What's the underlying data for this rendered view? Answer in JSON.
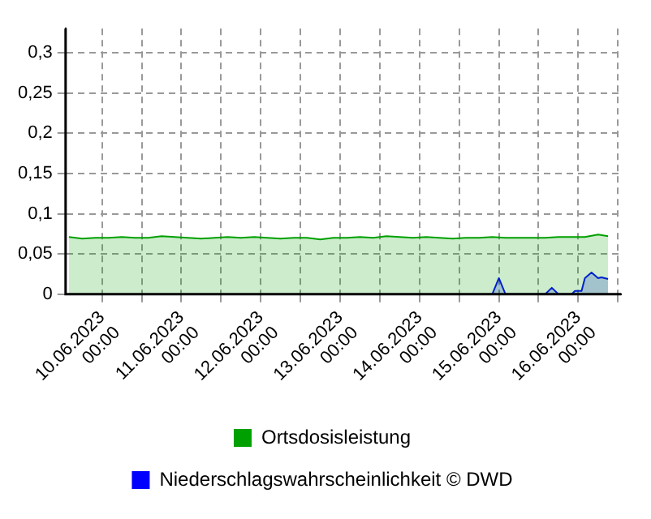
{
  "chart_data": {
    "type": "area",
    "xlim": [
      "2023-06-09T13:00",
      "2023-06-16T13:00"
    ],
    "xticks": [
      {
        "value": "2023-06-10T00:00",
        "label": "10.06.2023 00:00"
      },
      {
        "value": "2023-06-10T12:00",
        "label": null
      },
      {
        "value": "2023-06-11T00:00",
        "label": "11.06.2023 00:00"
      },
      {
        "value": "2023-06-11T12:00",
        "label": null
      },
      {
        "value": "2023-06-12T00:00",
        "label": "12.06.2023 00:00"
      },
      {
        "value": "2023-06-12T12:00",
        "label": null
      },
      {
        "value": "2023-06-13T00:00",
        "label": "13.06.2023 00:00"
      },
      {
        "value": "2023-06-13T12:00",
        "label": null
      },
      {
        "value": "2023-06-14T00:00",
        "label": "14.06.2023 00:00"
      },
      {
        "value": "2023-06-14T12:00",
        "label": null
      },
      {
        "value": "2023-06-15T00:00",
        "label": "15.06.2023 00:00"
      },
      {
        "value": "2023-06-15T12:00",
        "label": null
      },
      {
        "value": "2023-06-16T00:00",
        "label": "16.06.2023 00:00"
      },
      {
        "value": "2023-06-16T12:00",
        "label": null
      }
    ],
    "ylim": [
      0,
      0.33
    ],
    "yticks": [
      0,
      {
        "value": 0.05,
        "label": "0,05"
      },
      {
        "value": 0.1,
        "label": "0,1"
      },
      {
        "value": 0.15,
        "label": "0,15"
      },
      {
        "value": 0.2,
        "label": "0,2"
      },
      {
        "value": 0.25,
        "label": "0,25"
      },
      {
        "value": 0.3,
        "label": "0,3"
      }
    ],
    "grid": true,
    "legend": "bottom",
    "series": [
      {
        "name": "Ortsdosisleistung",
        "color": "#00a000",
        "x": [
          "2023-06-09T14:00",
          "2023-06-09T18:00",
          "2023-06-09T22:00",
          "2023-06-10T02:00",
          "2023-06-10T06:00",
          "2023-06-10T10:00",
          "2023-06-10T14:00",
          "2023-06-10T18:00",
          "2023-06-10T22:00",
          "2023-06-11T02:00",
          "2023-06-11T06:00",
          "2023-06-11T10:00",
          "2023-06-11T14:00",
          "2023-06-11T18:00",
          "2023-06-11T22:00",
          "2023-06-12T02:00",
          "2023-06-12T06:00",
          "2023-06-12T10:00",
          "2023-06-12T14:00",
          "2023-06-12T18:00",
          "2023-06-12T22:00",
          "2023-06-13T02:00",
          "2023-06-13T06:00",
          "2023-06-13T10:00",
          "2023-06-13T14:00",
          "2023-06-13T18:00",
          "2023-06-13T22:00",
          "2023-06-14T02:00",
          "2023-06-14T06:00",
          "2023-06-14T10:00",
          "2023-06-14T14:00",
          "2023-06-14T18:00",
          "2023-06-14T22:00",
          "2023-06-15T02:00",
          "2023-06-15T06:00",
          "2023-06-15T10:00",
          "2023-06-15T14:00",
          "2023-06-15T18:00",
          "2023-06-15T22:00",
          "2023-06-16T02:00",
          "2023-06-16T06:00",
          "2023-06-16T09:00"
        ],
        "values": [
          0.071,
          0.069,
          0.07,
          0.07,
          0.071,
          0.07,
          0.07,
          0.072,
          0.071,
          0.07,
          0.069,
          0.07,
          0.071,
          0.07,
          0.071,
          0.07,
          0.069,
          0.07,
          0.07,
          0.068,
          0.07,
          0.07,
          0.071,
          0.07,
          0.072,
          0.071,
          0.07,
          0.071,
          0.07,
          0.069,
          0.07,
          0.07,
          0.071,
          0.07,
          0.07,
          0.07,
          0.07,
          0.071,
          0.071,
          0.071,
          0.074,
          0.072
        ]
      },
      {
        "name": "Niederschlagswahrscheinlichkeit © DWD",
        "color": "#0000ff",
        "x": [
          "2023-06-14T22:00",
          "2023-06-15T00:00",
          "2023-06-15T02:00",
          "2023-06-15T14:00",
          "2023-06-15T16:00",
          "2023-06-15T18:00",
          "2023-06-15T22:00",
          "2023-06-15T23:00",
          "2023-06-16T01:00",
          "2023-06-16T02:00",
          "2023-06-16T04:00",
          "2023-06-16T06:00",
          "2023-06-16T07:00",
          "2023-06-16T09:00"
        ],
        "values": [
          0,
          0.02,
          0,
          0,
          0.008,
          0,
          0,
          0.004,
          0.004,
          0.02,
          0.027,
          0.02,
          0.021,
          0.019
        ]
      }
    ]
  }
}
